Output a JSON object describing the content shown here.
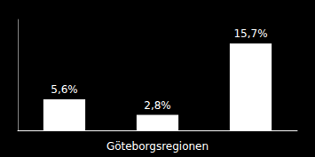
{
  "chart_data": {
    "type": "bar",
    "xlabel": "Göteborgsregionen",
    "categories": [
      null,
      null,
      null
    ],
    "values": [
      5.6,
      2.8,
      15.7
    ],
    "value_labels": [
      "5,6%",
      "2,8%",
      "15,7%"
    ],
    "color": "#ffffff",
    "ylim": [
      0,
      20
    ],
    "data_labels": true,
    "tick_labels": false,
    "grid": false
  }
}
